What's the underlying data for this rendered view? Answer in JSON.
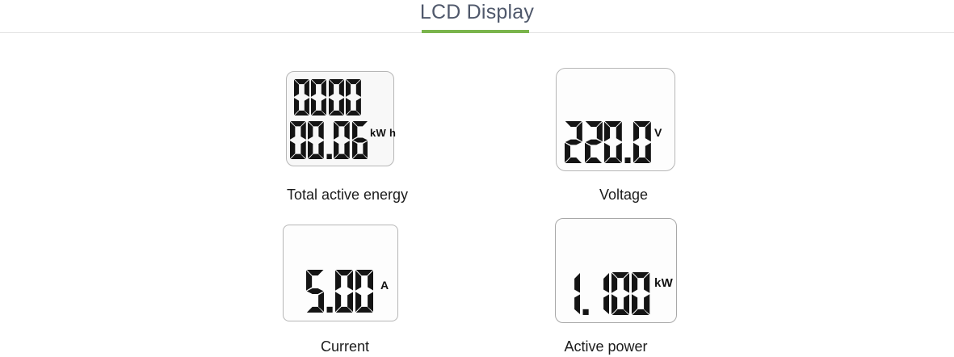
{
  "header": {
    "title": "LCD Display"
  },
  "theme": {
    "title_color": "#4f586b",
    "accent_green": "#7ab44c",
    "divider_color": "#e2e2e2",
    "segment_color": "#141414"
  },
  "displays": [
    {
      "name": "total-active-energy",
      "caption": "Total active energy",
      "rows": [
        {
          "value": "0000",
          "unit": ""
        },
        {
          "value": "00.06",
          "unit": "kW h"
        }
      ]
    },
    {
      "name": "voltage",
      "caption": "Voltage",
      "rows": [
        {
          "value": "220.0",
          "unit": "V"
        }
      ]
    },
    {
      "name": "current",
      "caption": "Current",
      "rows": [
        {
          "value": "5.00",
          "unit": "A"
        }
      ]
    },
    {
      "name": "active-power",
      "caption": "Active power",
      "rows": [
        {
          "value": "1.100",
          "unit": "kW"
        }
      ]
    }
  ]
}
